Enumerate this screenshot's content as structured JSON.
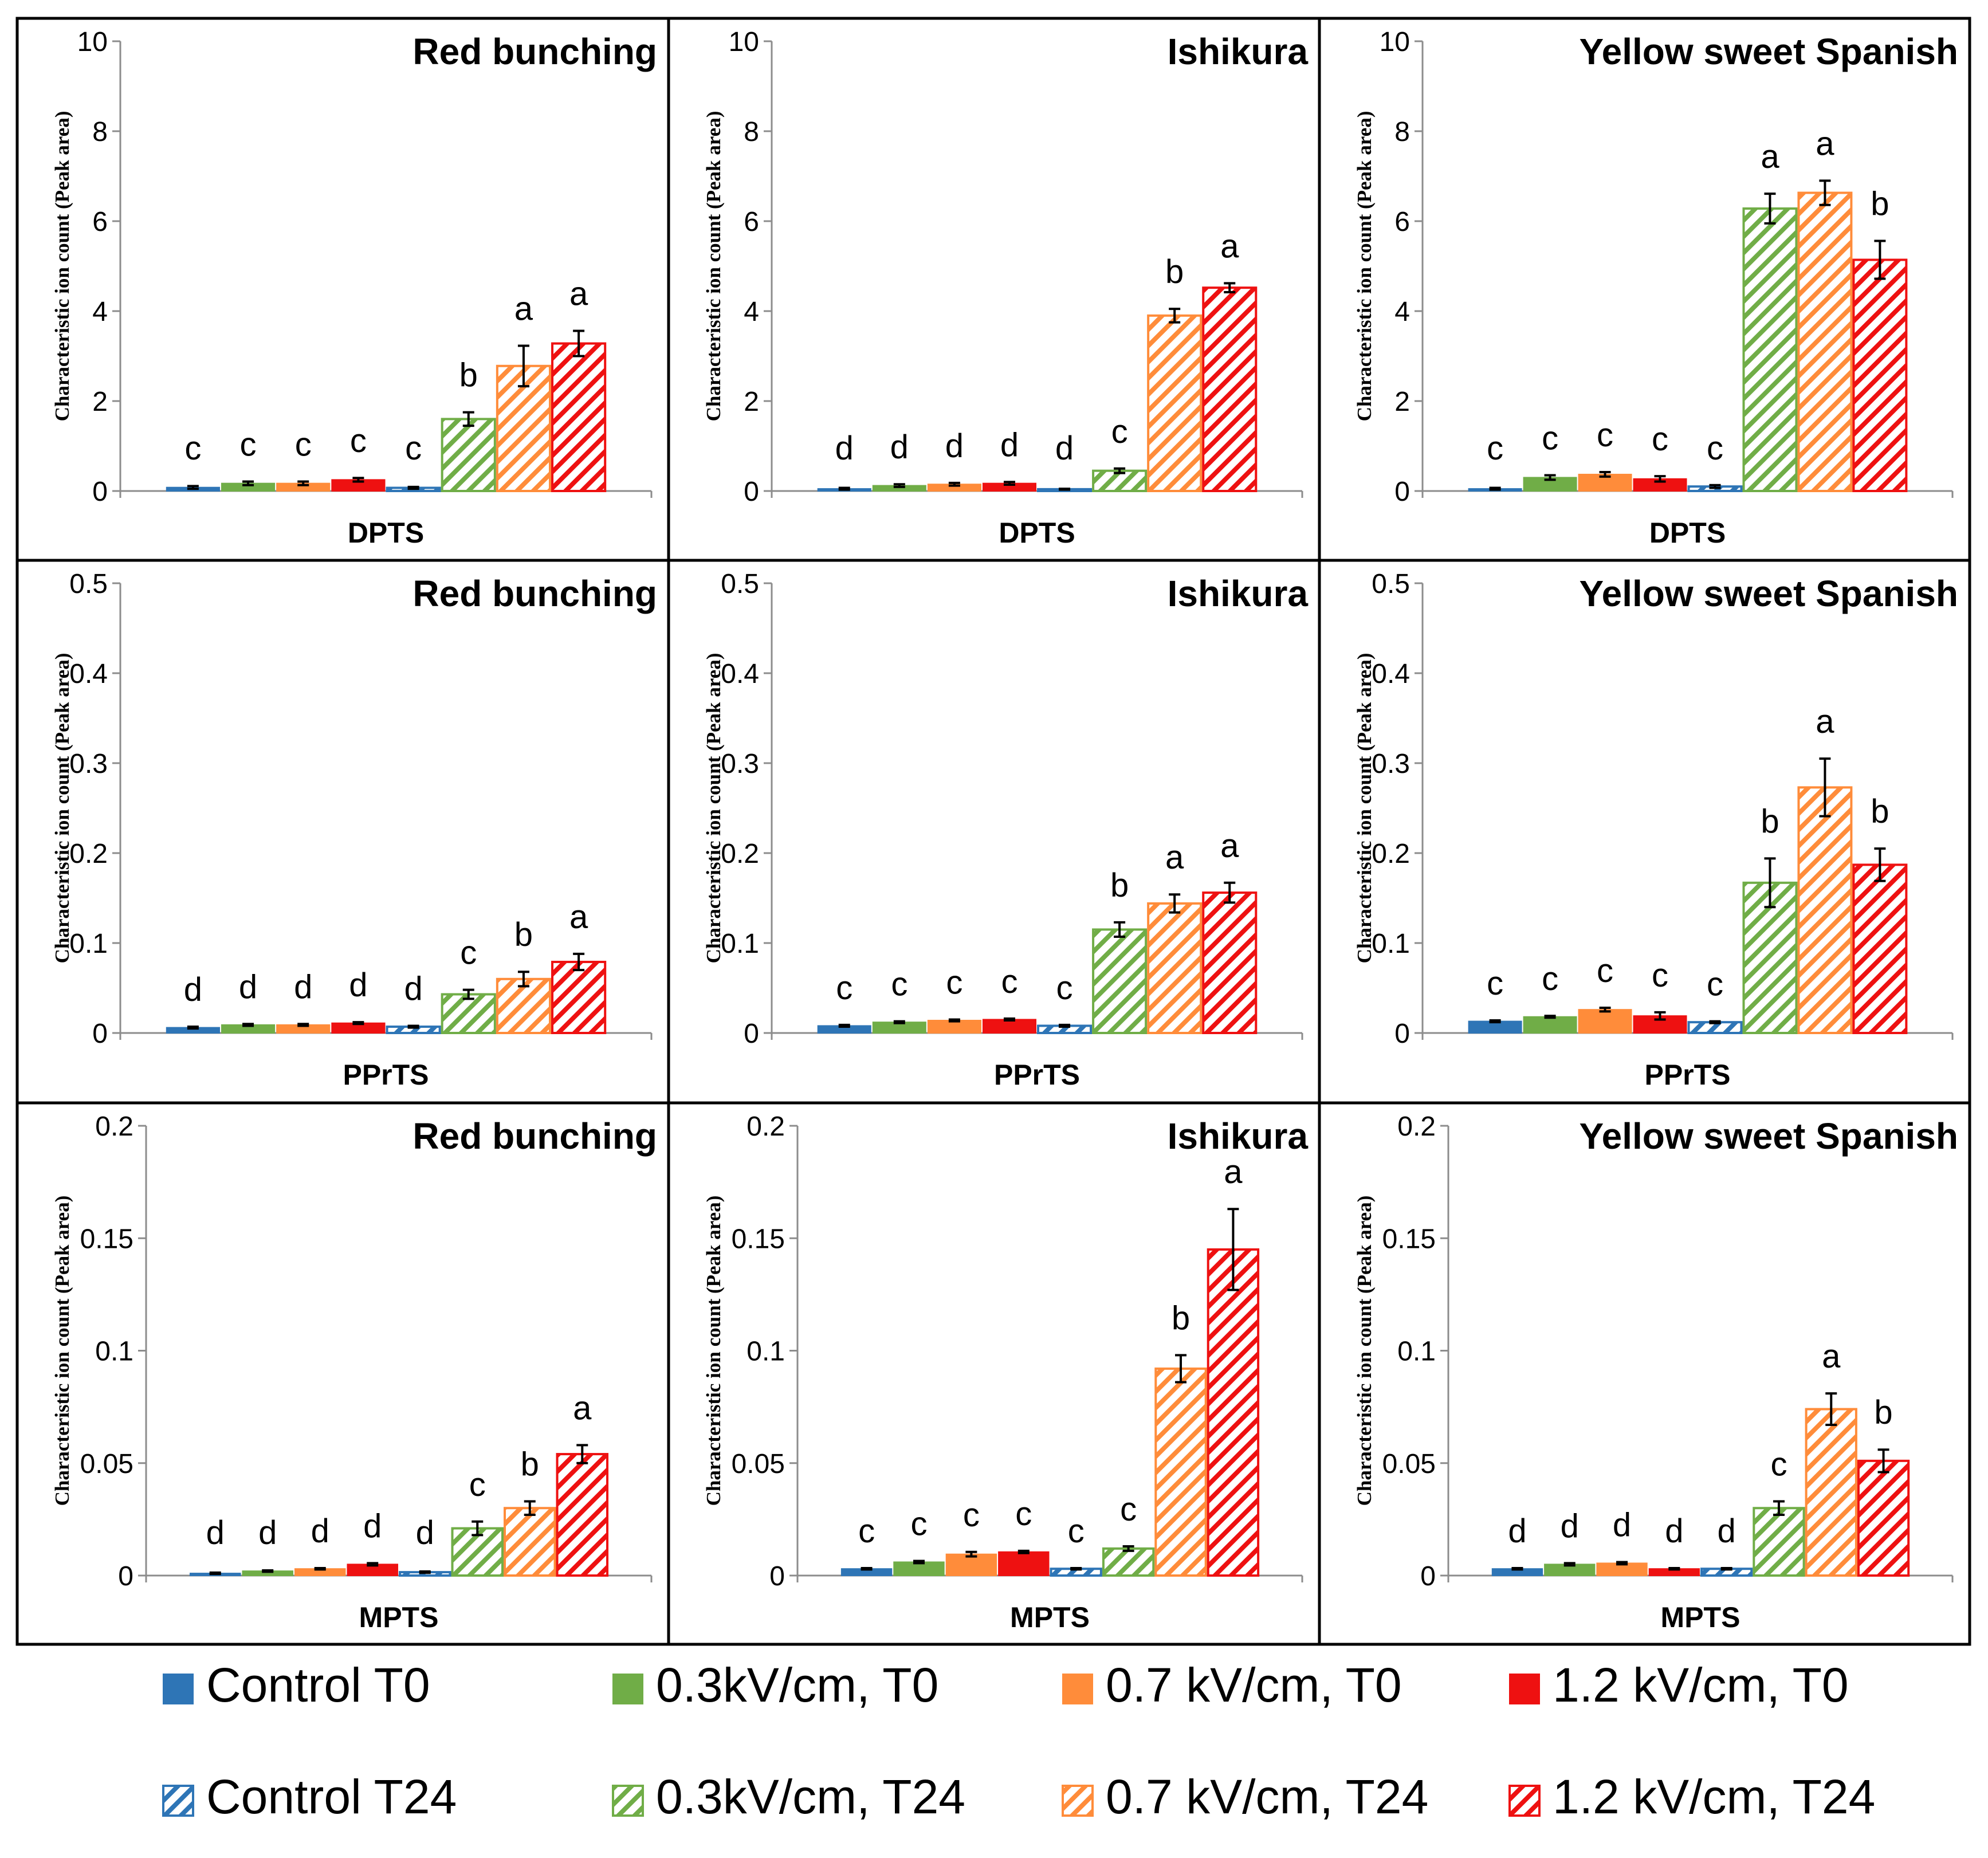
{
  "chart_data": [
    {
      "type": "bar",
      "compound": "DPTS",
      "cultivar": "Red bunching",
      "xlabel": "DPTS",
      "ylabel": "Characteristic ion count (Peak area)",
      "ylim": [
        0,
        10
      ],
      "yticks": [
        "0",
        "2",
        "4",
        "6",
        "8",
        "10"
      ],
      "values": [
        0.08,
        0.17,
        0.17,
        0.25,
        0.07,
        1.6,
        2.78,
        3.28
      ],
      "errors": [
        0.03,
        0.04,
        0.04,
        0.04,
        0.02,
        0.15,
        0.45,
        0.28
      ],
      "letters": [
        "c",
        "c",
        "c",
        "c",
        "c",
        "b",
        "a",
        "a"
      ]
    },
    {
      "type": "bar",
      "compound": "DPTS",
      "cultivar": "Ishikura",
      "xlabel": "DPTS",
      "ylabel": "Characteristic ion count (Peak area)",
      "ylim": [
        0,
        10
      ],
      "yticks": [
        "0",
        "2",
        "4",
        "6",
        "8",
        "10"
      ],
      "values": [
        0.05,
        0.12,
        0.15,
        0.17,
        0.04,
        0.45,
        3.9,
        4.52
      ],
      "errors": [
        0.02,
        0.03,
        0.03,
        0.03,
        0.01,
        0.05,
        0.15,
        0.1
      ],
      "letters": [
        "d",
        "d",
        "d",
        "d",
        "d",
        "c",
        "b",
        "a"
      ]
    },
    {
      "type": "bar",
      "compound": "DPTS",
      "cultivar": "Yellow sweet Spanish",
      "xlabel": "DPTS",
      "ylabel": "Characteristic ion count (Peak area)",
      "ylim": [
        0,
        10
      ],
      "yticks": [
        "0",
        "2",
        "4",
        "6",
        "8",
        "10"
      ],
      "values": [
        0.05,
        0.3,
        0.37,
        0.27,
        0.1,
        6.28,
        6.63,
        5.14
      ],
      "errors": [
        0.02,
        0.05,
        0.05,
        0.06,
        0.03,
        0.33,
        0.27,
        0.42
      ],
      "letters": [
        "c",
        "c",
        "c",
        "c",
        "c",
        "a",
        "a",
        "b"
      ]
    },
    {
      "type": "bar",
      "compound": "PPrTS",
      "cultivar": "Red bunching",
      "xlabel": "PPrTS",
      "ylabel": "Characteristic ion count (Peak area)",
      "ylim": [
        0,
        0.5
      ],
      "yticks": [
        "0",
        "0.1",
        "0.2",
        "0.3",
        "0.4",
        "0.5"
      ],
      "values": [
        0.006,
        0.009,
        0.009,
        0.011,
        0.007,
        0.043,
        0.06,
        0.079
      ],
      "errors": [
        0.001,
        0.001,
        0.001,
        0.001,
        0.001,
        0.005,
        0.008,
        0.009
      ],
      "letters": [
        "d",
        "d",
        "d",
        "d",
        "d",
        "c",
        "b",
        "a"
      ]
    },
    {
      "type": "bar",
      "compound": "PPrTS",
      "cultivar": "Ishikura",
      "xlabel": "PPrTS",
      "ylabel": "Characteristic ion count (Peak area)",
      "ylim": [
        0,
        0.5
      ],
      "yticks": [
        "0",
        "0.1",
        "0.2",
        "0.3",
        "0.4",
        "0.5"
      ],
      "values": [
        0.008,
        0.012,
        0.014,
        0.015,
        0.008,
        0.115,
        0.144,
        0.156
      ],
      "errors": [
        0.001,
        0.001,
        0.001,
        0.001,
        0.001,
        0.008,
        0.01,
        0.011
      ],
      "letters": [
        "c",
        "c",
        "c",
        "c",
        "c",
        "b",
        "a",
        "a"
      ]
    },
    {
      "type": "bar",
      "compound": "PPrTS",
      "cultivar": "Yellow sweet Spanish",
      "xlabel": "PPrTS",
      "ylabel": "Characteristic ion count (Peak area)",
      "ylim": [
        0,
        0.5
      ],
      "yticks": [
        "0",
        "0.1",
        "0.2",
        "0.3",
        "0.4",
        "0.5"
      ],
      "values": [
        0.013,
        0.018,
        0.026,
        0.019,
        0.012,
        0.167,
        0.273,
        0.187
      ],
      "errors": [
        0.001,
        0.001,
        0.002,
        0.004,
        0.001,
        0.027,
        0.032,
        0.018
      ],
      "letters": [
        "c",
        "c",
        "c",
        "c",
        "c",
        "b",
        "a",
        "b"
      ]
    },
    {
      "type": "bar",
      "compound": "MPTS",
      "cultivar": "Red bunching",
      "xlabel": "MPTS",
      "ylabel": "Characteristic ion count (Peak area)",
      "ylim": [
        0,
        0.2
      ],
      "yticks": [
        "0",
        "0.05",
        "0.1",
        "0.15",
        "0.2"
      ],
      "values": [
        0.001,
        0.002,
        0.003,
        0.005,
        0.0015,
        0.021,
        0.03,
        0.054
      ],
      "errors": [
        0.0003,
        0.0003,
        0.0003,
        0.0005,
        0.0003,
        0.003,
        0.003,
        0.004
      ],
      "letters": [
        "d",
        "d",
        "d",
        "d",
        "d",
        "c",
        "b",
        "a"
      ]
    },
    {
      "type": "bar",
      "compound": "MPTS",
      "cultivar": "Ishikura",
      "xlabel": "MPTS",
      "ylabel": "Characteristic ion count (Peak area)",
      "ylim": [
        0,
        0.2
      ],
      "yticks": [
        "0",
        "0.05",
        "0.1",
        "0.15",
        "0.2"
      ],
      "values": [
        0.003,
        0.006,
        0.0095,
        0.0105,
        0.003,
        0.012,
        0.092,
        0.145
      ],
      "errors": [
        0.0003,
        0.0005,
        0.001,
        0.0005,
        0.0003,
        0.001,
        0.006,
        0.018
      ],
      "letters": [
        "c",
        "c",
        "c",
        "c",
        "c",
        "c",
        "b",
        "a"
      ]
    },
    {
      "type": "bar",
      "compound": "MPTS",
      "cultivar": "Yellow sweet Spanish",
      "xlabel": "MPTS",
      "ylabel": "Characteristic ion count (Peak area)",
      "ylim": [
        0,
        0.2
      ],
      "yticks": [
        "0",
        "0.05",
        "0.1",
        "0.15",
        "0.2"
      ],
      "values": [
        0.003,
        0.005,
        0.0055,
        0.003,
        0.003,
        0.03,
        0.074,
        0.051
      ],
      "errors": [
        0.0003,
        0.0005,
        0.0005,
        0.0003,
        0.0003,
        0.003,
        0.007,
        0.005
      ],
      "letters": [
        "d",
        "d",
        "d",
        "d",
        "d",
        "c",
        "a",
        "b"
      ]
    }
  ],
  "series": [
    {
      "name": "Control T0",
      "color": "#2e75b6",
      "hatched": false
    },
    {
      "name": "0.3kV/cm, T0",
      "color": "#70ad47",
      "hatched": false
    },
    {
      "name": "0.7 kV/cm, T0",
      "color": "#ff8c3a",
      "hatched": false
    },
    {
      "name": "1.2 kV/cm, T0",
      "color": "#ee1111",
      "hatched": false
    },
    {
      "name": "Control T24",
      "color": "#2e75b6",
      "hatched": true
    },
    {
      "name": "0.3kV/cm, T24",
      "color": "#70ad47",
      "hatched": true
    },
    {
      "name": "0.7 kV/cm, T24",
      "color": "#ff8c3a",
      "hatched": true
    },
    {
      "name": "1.2 kV/cm, T24",
      "color": "#ee1111",
      "hatched": true
    }
  ]
}
